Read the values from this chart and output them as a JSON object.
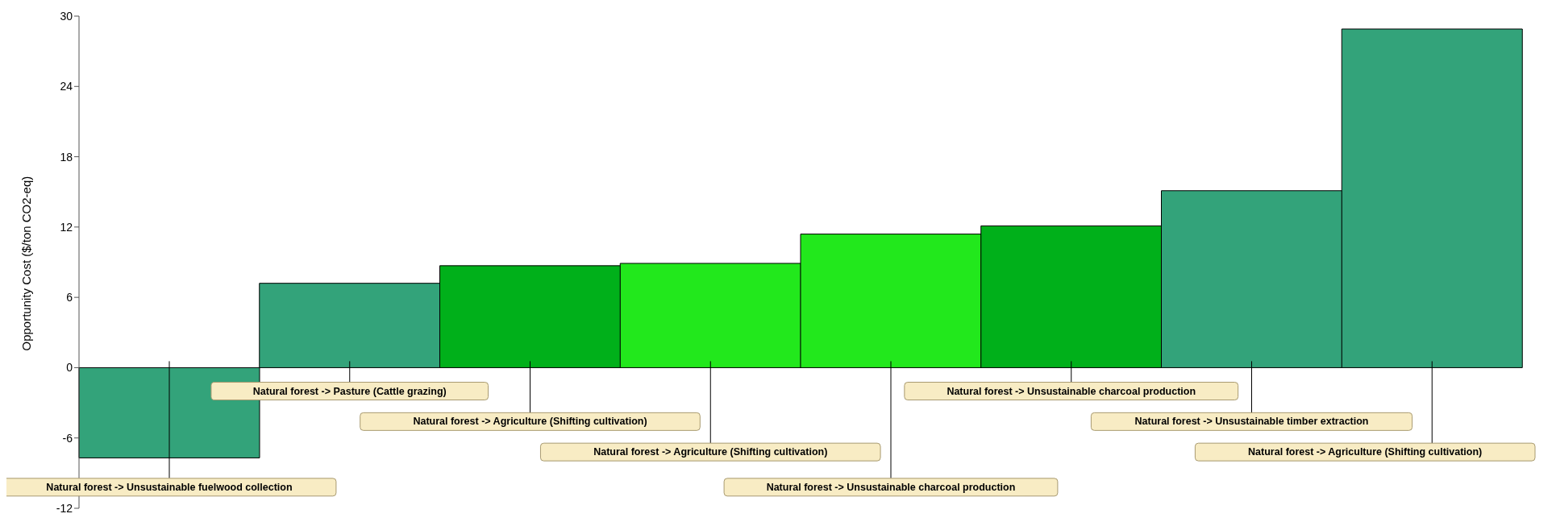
{
  "chart_data": {
    "type": "bar",
    "ylabel": "Opportunity Cost ($/ton CO2-eq)",
    "categories": [
      "Natural forest -> Unsustainable fuelwood collection",
      "Natural forest -> Pasture (Cattle grazing)",
      "Natural forest -> Agriculture (Shifting cultivation)",
      "Natural forest -> Agriculture (Shifting cultivation)",
      "Natural forest -> Unsustainable charcoal production",
      "Natural forest -> Unsustainable charcoal production",
      "Natural forest -> Unsustainable timber extraction",
      "Natural forest -> Agriculture (Shifting cultivation)"
    ],
    "values": [
      -7.7,
      7.2,
      8.7,
      8.9,
      11.4,
      12.1,
      15.1,
      28.9
    ],
    "colors": [
      "#33a37a",
      "#33a37a",
      "#00b01a",
      "#22e81c",
      "#22e81c",
      "#00b01a",
      "#33a37a",
      "#33a37a"
    ],
    "ylim": [
      -12,
      30
    ],
    "yticks": [
      -12,
      -6,
      0,
      6,
      12,
      18,
      24,
      30
    ],
    "tick_labels": "y"
  }
}
